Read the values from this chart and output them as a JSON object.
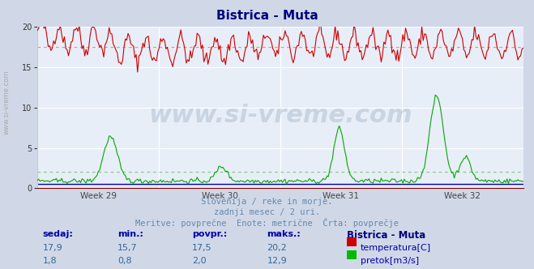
{
  "title": "Bistrica - Muta",
  "title_color": "#000080",
  "bg_color": "#d0d8e8",
  "plot_bg_color": "#e8eef8",
  "grid_color": "#ffffff",
  "x_weeks": [
    "Week 29",
    "Week 30",
    "Week 31",
    "Week 32"
  ],
  "ylim": [
    0,
    20
  ],
  "yticks": [
    0,
    5,
    10,
    15,
    20
  ],
  "temp_color": "#cc0000",
  "flow_color": "#00aa00",
  "blue_line_color": "#0000cc",
  "dotted_temp_color": "#ff8888",
  "dotted_flow_color": "#88cc88",
  "subtitle_lines": [
    "Slovenija / reke in morje.",
    "zadnji mesec / 2 uri.",
    "Meritve: povprečne  Enote: metrične  Črta: povprečje"
  ],
  "subtitle_color": "#6688aa",
  "table_header_color": "#0000aa",
  "table_value_color": "#336699",
  "table_bold_color": "#000080",
  "temp_sedaj": "17,9",
  "temp_min": "15,7",
  "temp_povpr": "17,5",
  "temp_maks": "20,2",
  "flow_sedaj": "1,8",
  "flow_min": "0,8",
  "flow_povpr": "2,0",
  "flow_maks": "12,9",
  "station_name": "Bistrica - Muta",
  "n_points": 360,
  "temp_base": 17.5,
  "temp_amplitude": 1.5,
  "temp_noise": 0.5,
  "flow_base": 1.0,
  "watermark_text": "www.si-vreme.com"
}
